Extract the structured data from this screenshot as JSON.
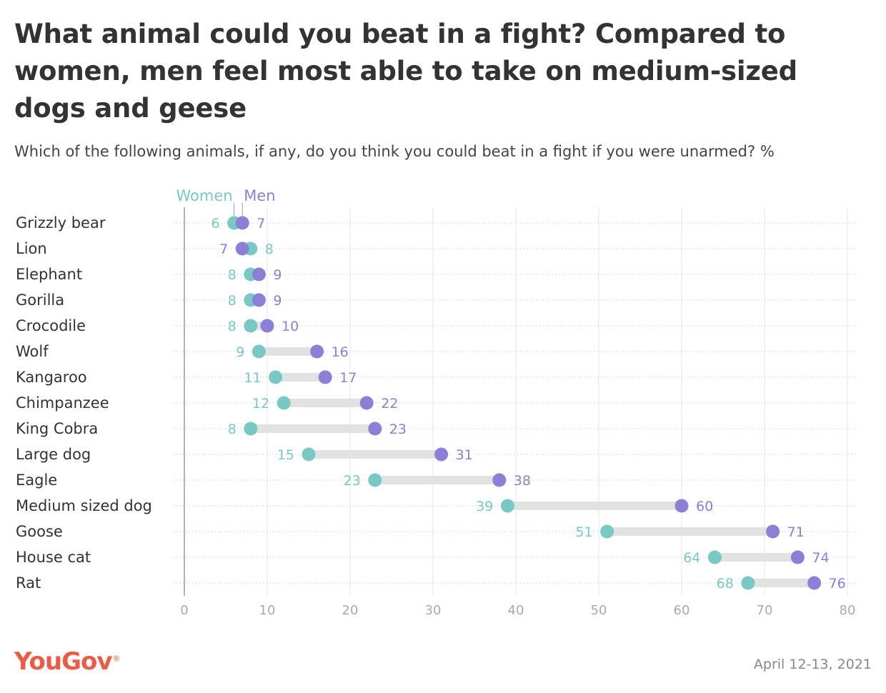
{
  "header": {
    "title": "What animal could you beat in a fight? Compared to women, men feel most able to take on medium-sized dogs and geese",
    "subtitle": "Which of the following animals, if any, do you think you could beat in a fight if you were unarmed? %"
  },
  "footer": {
    "logo": "YouGov",
    "date": "April 12-13, 2021"
  },
  "colors": {
    "women": "#78c9c4",
    "men": "#8b7fd8",
    "connector": "#e2e2e2",
    "logo": "#ef5a45"
  },
  "chart_data": {
    "type": "dumbbell",
    "title": "What animal could you beat in a fight? Compared to women, men feel most able to take on medium-sized dogs and geese",
    "subtitle": "Which of the following animals, if any, do you think you could beat in a fight if you were unarmed? %",
    "xlim": [
      0,
      80
    ],
    "xticks": [
      0,
      10,
      20,
      30,
      40,
      50,
      60,
      70,
      80
    ],
    "grid": true,
    "legend": "top",
    "categories": [
      "Grizzly bear",
      "Lion",
      "Elephant",
      "Gorilla",
      "Crocodile",
      "Wolf",
      "Kangaroo",
      "Chimpanzee",
      "King Cobra",
      "Large dog",
      "Eagle",
      "Medium sized dog",
      "Goose",
      "House cat",
      "Rat"
    ],
    "series": [
      {
        "name": "Women",
        "values": [
          6,
          8,
          8,
          8,
          8,
          9,
          11,
          12,
          8,
          15,
          23,
          39,
          51,
          64,
          68
        ]
      },
      {
        "name": "Men",
        "values": [
          7,
          7,
          9,
          9,
          10,
          16,
          17,
          22,
          23,
          31,
          38,
          60,
          71,
          74,
          76
        ]
      }
    ]
  }
}
